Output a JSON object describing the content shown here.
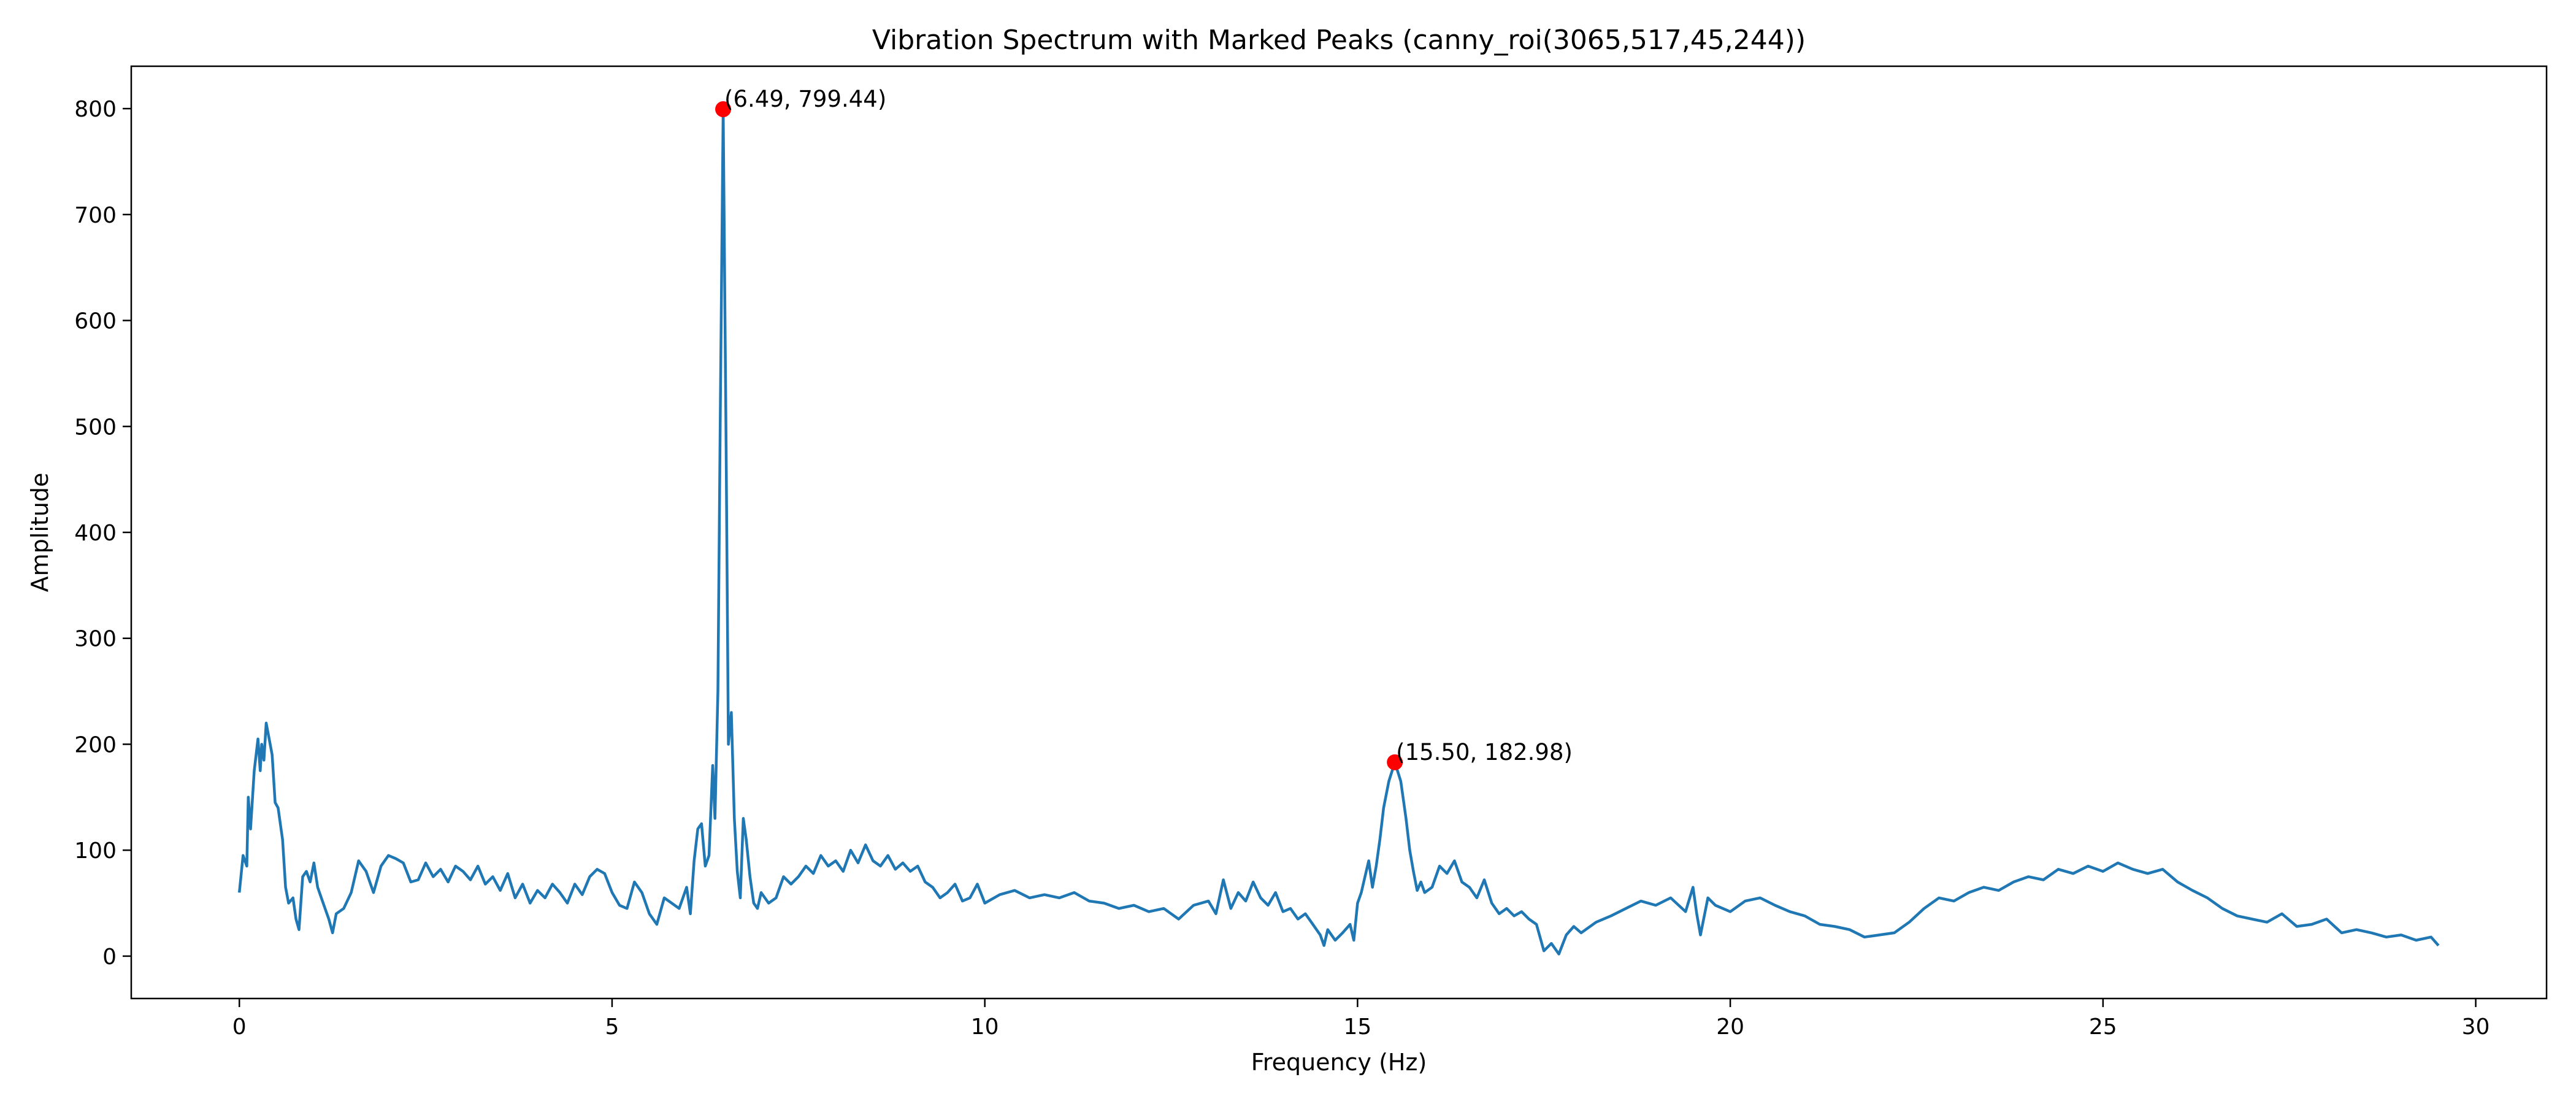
{
  "chart_data": {
    "type": "line",
    "title": "Vibration Spectrum with Marked Peaks (canny_roi(3065,517,45,244))",
    "xlabel": "Frequency (Hz)",
    "ylabel": "Amplitude",
    "xlim": [
      -1.45,
      30.95
    ],
    "ylim": [
      -40,
      840
    ],
    "x_ticks": [
      0,
      5,
      10,
      15,
      20,
      25,
      30
    ],
    "y_ticks": [
      0,
      100,
      200,
      300,
      400,
      500,
      600,
      700,
      800
    ],
    "grid": false,
    "legend": "none",
    "series": [
      {
        "color": "#1f77b4",
        "points": [
          [
            0.0,
            60
          ],
          [
            0.05,
            95
          ],
          [
            0.1,
            85
          ],
          [
            0.12,
            150
          ],
          [
            0.15,
            120
          ],
          [
            0.2,
            175
          ],
          [
            0.25,
            205
          ],
          [
            0.28,
            175
          ],
          [
            0.3,
            200
          ],
          [
            0.33,
            185
          ],
          [
            0.36,
            220
          ],
          [
            0.4,
            205
          ],
          [
            0.44,
            190
          ],
          [
            0.48,
            145
          ],
          [
            0.52,
            140
          ],
          [
            0.58,
            110
          ],
          [
            0.62,
            65
          ],
          [
            0.66,
            50
          ],
          [
            0.72,
            55
          ],
          [
            0.76,
            35
          ],
          [
            0.8,
            25
          ],
          [
            0.85,
            75
          ],
          [
            0.9,
            80
          ],
          [
            0.95,
            70
          ],
          [
            1.0,
            88
          ],
          [
            1.05,
            65
          ],
          [
            1.1,
            55
          ],
          [
            1.15,
            45
          ],
          [
            1.2,
            35
          ],
          [
            1.25,
            22
          ],
          [
            1.3,
            40
          ],
          [
            1.4,
            45
          ],
          [
            1.5,
            60
          ],
          [
            1.6,
            90
          ],
          [
            1.7,
            80
          ],
          [
            1.8,
            60
          ],
          [
            1.9,
            85
          ],
          [
            2.0,
            95
          ],
          [
            2.1,
            92
          ],
          [
            2.2,
            88
          ],
          [
            2.3,
            70
          ],
          [
            2.4,
            72
          ],
          [
            2.5,
            88
          ],
          [
            2.6,
            75
          ],
          [
            2.7,
            82
          ],
          [
            2.8,
            70
          ],
          [
            2.9,
            85
          ],
          [
            3.0,
            80
          ],
          [
            3.1,
            72
          ],
          [
            3.2,
            85
          ],
          [
            3.3,
            68
          ],
          [
            3.4,
            75
          ],
          [
            3.5,
            62
          ],
          [
            3.6,
            78
          ],
          [
            3.7,
            55
          ],
          [
            3.8,
            68
          ],
          [
            3.9,
            50
          ],
          [
            4.0,
            62
          ],
          [
            4.1,
            55
          ],
          [
            4.2,
            68
          ],
          [
            4.3,
            60
          ],
          [
            4.4,
            50
          ],
          [
            4.5,
            68
          ],
          [
            4.6,
            58
          ],
          [
            4.7,
            75
          ],
          [
            4.8,
            82
          ],
          [
            4.9,
            78
          ],
          [
            5.0,
            60
          ],
          [
            5.1,
            48
          ],
          [
            5.2,
            45
          ],
          [
            5.3,
            70
          ],
          [
            5.4,
            60
          ],
          [
            5.5,
            40
          ],
          [
            5.6,
            30
          ],
          [
            5.7,
            55
          ],
          [
            5.8,
            50
          ],
          [
            5.9,
            45
          ],
          [
            6.0,
            65
          ],
          [
            6.05,
            40
          ],
          [
            6.1,
            90
          ],
          [
            6.15,
            120
          ],
          [
            6.2,
            125
          ],
          [
            6.25,
            85
          ],
          [
            6.3,
            95
          ],
          [
            6.35,
            180
          ],
          [
            6.38,
            130
          ],
          [
            6.42,
            250
          ],
          [
            6.45,
            500
          ],
          [
            6.49,
            799.44
          ],
          [
            6.53,
            480
          ],
          [
            6.56,
            200
          ],
          [
            6.6,
            230
          ],
          [
            6.64,
            130
          ],
          [
            6.68,
            80
          ],
          [
            6.72,
            55
          ],
          [
            6.76,
            130
          ],
          [
            6.8,
            110
          ],
          [
            6.85,
            75
          ],
          [
            6.9,
            50
          ],
          [
            6.95,
            45
          ],
          [
            7.0,
            60
          ],
          [
            7.1,
            50
          ],
          [
            7.2,
            55
          ],
          [
            7.3,
            75
          ],
          [
            7.4,
            68
          ],
          [
            7.5,
            75
          ],
          [
            7.6,
            85
          ],
          [
            7.7,
            78
          ],
          [
            7.8,
            95
          ],
          [
            7.9,
            85
          ],
          [
            8.0,
            90
          ],
          [
            8.1,
            80
          ],
          [
            8.2,
            100
          ],
          [
            8.3,
            88
          ],
          [
            8.4,
            105
          ],
          [
            8.5,
            90
          ],
          [
            8.6,
            85
          ],
          [
            8.7,
            95
          ],
          [
            8.8,
            82
          ],
          [
            8.9,
            88
          ],
          [
            9.0,
            80
          ],
          [
            9.1,
            85
          ],
          [
            9.2,
            70
          ],
          [
            9.3,
            65
          ],
          [
            9.4,
            55
          ],
          [
            9.5,
            60
          ],
          [
            9.6,
            68
          ],
          [
            9.7,
            52
          ],
          [
            9.8,
            55
          ],
          [
            9.9,
            68
          ],
          [
            10.0,
            50
          ],
          [
            10.2,
            58
          ],
          [
            10.4,
            62
          ],
          [
            10.6,
            55
          ],
          [
            10.8,
            58
          ],
          [
            11.0,
            55
          ],
          [
            11.2,
            60
          ],
          [
            11.4,
            52
          ],
          [
            11.6,
            50
          ],
          [
            11.8,
            45
          ],
          [
            12.0,
            48
          ],
          [
            12.2,
            42
          ],
          [
            12.4,
            45
          ],
          [
            12.6,
            35
          ],
          [
            12.8,
            48
          ],
          [
            13.0,
            52
          ],
          [
            13.1,
            40
          ],
          [
            13.2,
            72
          ],
          [
            13.3,
            45
          ],
          [
            13.4,
            60
          ],
          [
            13.5,
            52
          ],
          [
            13.6,
            70
          ],
          [
            13.7,
            55
          ],
          [
            13.8,
            48
          ],
          [
            13.9,
            60
          ],
          [
            14.0,
            42
          ],
          [
            14.1,
            45
          ],
          [
            14.2,
            35
          ],
          [
            14.3,
            40
          ],
          [
            14.4,
            30
          ],
          [
            14.5,
            20
          ],
          [
            14.55,
            10
          ],
          [
            14.6,
            25
          ],
          [
            14.7,
            15
          ],
          [
            14.8,
            22
          ],
          [
            14.9,
            30
          ],
          [
            14.95,
            15
          ],
          [
            15.0,
            50
          ],
          [
            15.05,
            60
          ],
          [
            15.1,
            75
          ],
          [
            15.15,
            90
          ],
          [
            15.2,
            65
          ],
          [
            15.25,
            85
          ],
          [
            15.3,
            110
          ],
          [
            15.35,
            140
          ],
          [
            15.42,
            165
          ],
          [
            15.5,
            182.98
          ],
          [
            15.58,
            165
          ],
          [
            15.65,
            130
          ],
          [
            15.7,
            100
          ],
          [
            15.75,
            80
          ],
          [
            15.8,
            62
          ],
          [
            15.85,
            70
          ],
          [
            15.9,
            60
          ],
          [
            16.0,
            65
          ],
          [
            16.1,
            85
          ],
          [
            16.2,
            78
          ],
          [
            16.3,
            90
          ],
          [
            16.4,
            70
          ],
          [
            16.5,
            65
          ],
          [
            16.6,
            55
          ],
          [
            16.7,
            72
          ],
          [
            16.8,
            50
          ],
          [
            16.9,
            40
          ],
          [
            17.0,
            45
          ],
          [
            17.1,
            38
          ],
          [
            17.2,
            42
          ],
          [
            17.3,
            35
          ],
          [
            17.4,
            30
          ],
          [
            17.5,
            5
          ],
          [
            17.6,
            12
          ],
          [
            17.7,
            2
          ],
          [
            17.8,
            20
          ],
          [
            17.9,
            28
          ],
          [
            18.0,
            22
          ],
          [
            18.2,
            32
          ],
          [
            18.4,
            38
          ],
          [
            18.6,
            45
          ],
          [
            18.8,
            52
          ],
          [
            19.0,
            48
          ],
          [
            19.2,
            55
          ],
          [
            19.4,
            42
          ],
          [
            19.5,
            65
          ],
          [
            19.55,
            40
          ],
          [
            19.6,
            20
          ],
          [
            19.7,
            55
          ],
          [
            19.8,
            48
          ],
          [
            20.0,
            42
          ],
          [
            20.2,
            52
          ],
          [
            20.4,
            55
          ],
          [
            20.6,
            48
          ],
          [
            20.8,
            42
          ],
          [
            21.0,
            38
          ],
          [
            21.2,
            30
          ],
          [
            21.4,
            28
          ],
          [
            21.6,
            25
          ],
          [
            21.8,
            18
          ],
          [
            22.0,
            20
          ],
          [
            22.2,
            22
          ],
          [
            22.4,
            32
          ],
          [
            22.6,
            45
          ],
          [
            22.8,
            55
          ],
          [
            23.0,
            52
          ],
          [
            23.2,
            60
          ],
          [
            23.4,
            65
          ],
          [
            23.6,
            62
          ],
          [
            23.8,
            70
          ],
          [
            24.0,
            75
          ],
          [
            24.2,
            72
          ],
          [
            24.4,
            82
          ],
          [
            24.6,
            78
          ],
          [
            24.8,
            85
          ],
          [
            25.0,
            80
          ],
          [
            25.2,
            88
          ],
          [
            25.4,
            82
          ],
          [
            25.6,
            78
          ],
          [
            25.8,
            82
          ],
          [
            26.0,
            70
          ],
          [
            26.2,
            62
          ],
          [
            26.4,
            55
          ],
          [
            26.6,
            45
          ],
          [
            26.8,
            38
          ],
          [
            27.0,
            35
          ],
          [
            27.2,
            32
          ],
          [
            27.4,
            40
          ],
          [
            27.6,
            28
          ],
          [
            27.8,
            30
          ],
          [
            28.0,
            35
          ],
          [
            28.2,
            22
          ],
          [
            28.4,
            25
          ],
          [
            28.6,
            22
          ],
          [
            28.8,
            18
          ],
          [
            29.0,
            20
          ],
          [
            29.2,
            15
          ],
          [
            29.4,
            18
          ],
          [
            29.5,
            10
          ]
        ]
      }
    ],
    "peaks": [
      {
        "x": 6.49,
        "y": 799.44,
        "label": "(6.49, 799.44)",
        "color": "#ff0000"
      },
      {
        "x": 15.5,
        "y": 182.98,
        "label": "(15.50, 182.98)",
        "color": "#ff0000"
      }
    ]
  }
}
